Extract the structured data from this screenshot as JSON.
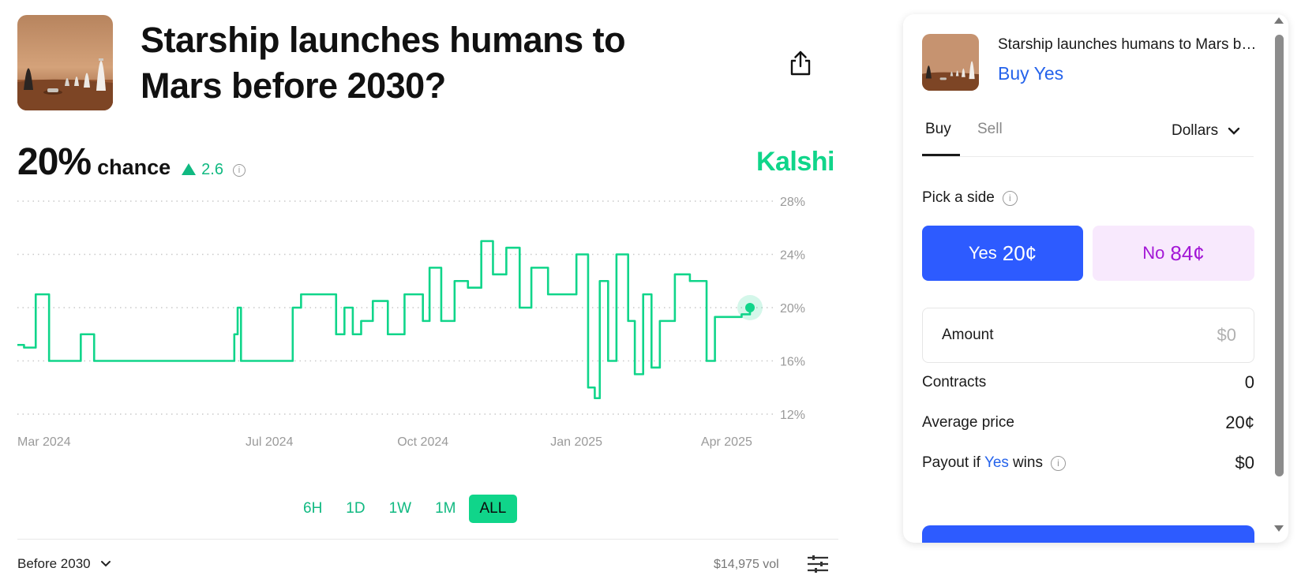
{
  "market": {
    "title": "Starship launches humans to Mars before 2030?",
    "probability": "20%",
    "probability_label": "chance",
    "delta": "2.6",
    "delta_direction": "up",
    "source": "Kalshi",
    "outcome_selector": "Before 2030",
    "volume": "$14,975 vol",
    "icons": [
      "share-icon",
      "info-icon",
      "chevron-down-icon",
      "sliders-icon",
      "starship-thumbnail"
    ]
  },
  "range_tabs": [
    {
      "label": "6H",
      "active": false
    },
    {
      "label": "1D",
      "active": false
    },
    {
      "label": "1W",
      "active": false
    },
    {
      "label": "1M",
      "active": false
    },
    {
      "label": "ALL",
      "active": true
    }
  ],
  "chart_data": {
    "type": "line",
    "series": [
      {
        "name": "",
        "color": "#10d58a",
        "x": [
          "2024-02-01",
          "2024-02-05",
          "2024-02-12",
          "2024-02-20",
          "2024-03-10",
          "2024-03-18",
          "2024-04-20",
          "2024-06-10",
          "2024-06-12",
          "2024-06-14",
          "2024-07-15",
          "2024-07-20",
          "2024-08-10",
          "2024-08-15",
          "2024-08-20",
          "2024-08-25",
          "2024-09-01",
          "2024-09-10",
          "2024-09-20",
          "2024-10-01",
          "2024-10-05",
          "2024-10-12",
          "2024-10-20",
          "2024-10-28",
          "2024-11-05",
          "2024-11-12",
          "2024-11-20",
          "2024-11-28",
          "2024-12-05",
          "2024-12-15",
          "2025-01-01",
          "2025-01-08",
          "2025-01-12",
          "2025-01-15",
          "2025-01-20",
          "2025-01-25",
          "2025-02-01",
          "2025-02-05",
          "2025-02-10",
          "2025-02-15",
          "2025-02-20",
          "2025-03-01",
          "2025-03-10",
          "2025-03-20",
          "2025-03-25",
          "2025-04-01",
          "2025-04-10",
          "2025-04-15"
        ],
        "y": [
          17.2,
          17.0,
          21.0,
          16.0,
          18.0,
          16.0,
          16.0,
          18.0,
          20.0,
          16.0,
          20.0,
          21.0,
          18.0,
          20.0,
          18.0,
          19.0,
          20.5,
          18.0,
          21.0,
          19.0,
          23.0,
          19.0,
          22.0,
          21.5,
          25.0,
          22.5,
          24.5,
          20.0,
          23.0,
          21.0,
          24.0,
          14.0,
          13.2,
          22.0,
          16.0,
          24.0,
          19.0,
          15.0,
          21.0,
          15.5,
          19.0,
          22.5,
          22.0,
          16.0,
          19.3,
          19.3,
          19.5,
          20.0
        ]
      }
    ],
    "x_ticks": [
      "Mar 2024",
      "Jul 2024",
      "Oct 2024",
      "Jan 2025",
      "Apr 2025"
    ],
    "y_ticks": [
      "28%",
      "24%",
      "20%",
      "16%",
      "12%"
    ],
    "ylim": [
      12,
      28
    ],
    "grid": true
  },
  "order": {
    "title": "Starship launches humans to Mars before 2030?",
    "subtitle": "Buy Yes",
    "tab_buy": "Buy",
    "tab_sell": "Sell",
    "unit": "Dollars",
    "pick_label": "Pick a side",
    "yes_label": "Yes",
    "yes_price": "20¢",
    "no_label": "No",
    "no_price": "84¢",
    "amount_label": "Amount",
    "amount_placeholder": "$0",
    "contracts_label": "Contracts",
    "contracts_value": "0",
    "avg_price_label": "Average price",
    "avg_price_value": "20¢",
    "payout_prefix": "Payout if",
    "payout_yes": "Yes",
    "payout_suffix": "wins",
    "payout_value": "$0",
    "colors": {
      "yes": "#2d5bff",
      "no_bg": "#f8e9fd",
      "no_text": "#a317d6",
      "accent": "#10d58a"
    }
  }
}
